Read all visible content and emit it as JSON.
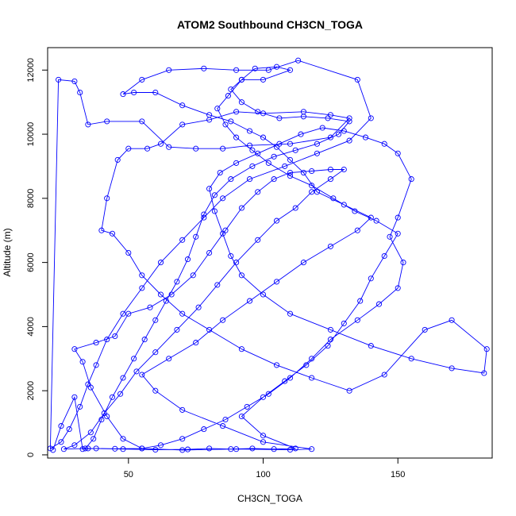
{
  "chart_data": {
    "type": "scatter",
    "title": "ATOM2 Southbound CH3CN_TOGA",
    "xlabel": "CH3CN_TOGA",
    "ylabel": "Altitude (m)",
    "xlim": [
      20,
      185
    ],
    "ylim": [
      -100,
      12700
    ],
    "xticks": [
      50,
      100,
      150
    ],
    "yticks": [
      0,
      2000,
      4000,
      6000,
      8000,
      10000,
      12000
    ],
    "grid": false,
    "legend": "none",
    "series": [
      {
        "color": "#0000ff",
        "marker": "open-circle",
        "line": true,
        "points": [
          [
            22,
            150
          ],
          [
            25,
            900
          ],
          [
            30,
            1800
          ],
          [
            33,
            180
          ],
          [
            38,
            200
          ],
          [
            45,
            190
          ],
          [
            55,
            200
          ],
          [
            70,
            150
          ],
          [
            90,
            180
          ],
          [
            110,
            160
          ],
          [
            118,
            180
          ],
          [
            100,
            400
          ],
          [
            85,
            900
          ],
          [
            70,
            1400
          ],
          [
            60,
            2000
          ],
          [
            55,
            2500
          ],
          [
            65,
            3000
          ],
          [
            75,
            3500
          ],
          [
            85,
            4200
          ],
          [
            95,
            4800
          ],
          [
            105,
            5400
          ],
          [
            115,
            6000
          ],
          [
            125,
            6500
          ],
          [
            135,
            7000
          ],
          [
            140,
            7400
          ],
          [
            130,
            7800
          ],
          [
            120,
            8200
          ],
          [
            115,
            8800
          ],
          [
            110,
            9200
          ],
          [
            105,
            9600
          ],
          [
            100,
            9900
          ],
          [
            95,
            10100
          ],
          [
            88,
            10400
          ],
          [
            80,
            10600
          ],
          [
            70,
            10900
          ],
          [
            60,
            11300
          ],
          [
            52,
            11300
          ],
          [
            48,
            11250
          ],
          [
            55,
            11700
          ],
          [
            65,
            12000
          ],
          [
            78,
            12050
          ],
          [
            90,
            12000
          ],
          [
            102,
            12000
          ],
          [
            113,
            12300
          ],
          [
            135,
            11700
          ],
          [
            140,
            10500
          ],
          [
            132,
            9800
          ],
          [
            120,
            9400
          ],
          [
            108,
            9000
          ],
          [
            95,
            8600
          ],
          [
            85,
            8000
          ],
          [
            78,
            7400
          ],
          [
            70,
            6700
          ],
          [
            62,
            6000
          ],
          [
            55,
            5200
          ],
          [
            48,
            4400
          ],
          [
            42,
            3600
          ],
          [
            38,
            2800
          ],
          [
            35,
            2200
          ],
          [
            32,
            1500
          ],
          [
            28,
            800
          ],
          [
            25,
            400
          ],
          [
            21,
            200
          ],
          [
            24,
            11700
          ],
          [
            30,
            11650
          ],
          [
            32,
            11300
          ],
          [
            35,
            10300
          ],
          [
            42,
            10400
          ],
          [
            55,
            10400
          ],
          [
            65,
            9600
          ],
          [
            75,
            9550
          ],
          [
            85,
            9550
          ],
          [
            95,
            9650
          ],
          [
            110,
            9700
          ],
          [
            125,
            9900
          ],
          [
            132,
            10500
          ],
          [
            125,
            10600
          ],
          [
            115,
            10700
          ],
          [
            100,
            10650
          ],
          [
            90,
            10700
          ],
          [
            80,
            10450
          ],
          [
            70,
            10300
          ],
          [
            62,
            9700
          ],
          [
            57,
            9550
          ],
          [
            50,
            9550
          ],
          [
            46,
            9200
          ],
          [
            42,
            8000
          ],
          [
            40,
            7000
          ],
          [
            44,
            6900
          ],
          [
            50,
            6300
          ],
          [
            55,
            5600
          ],
          [
            62,
            5000
          ],
          [
            70,
            4400
          ],
          [
            80,
            3900
          ],
          [
            92,
            3300
          ],
          [
            105,
            2800
          ],
          [
            118,
            2400
          ],
          [
            132,
            2000
          ],
          [
            145,
            2500
          ],
          [
            160,
            3900
          ],
          [
            170,
            4200
          ],
          [
            183,
            3300
          ],
          [
            182,
            2550
          ],
          [
            170,
            2700
          ],
          [
            155,
            3000
          ],
          [
            140,
            3400
          ],
          [
            125,
            3900
          ],
          [
            110,
            4400
          ],
          [
            100,
            5000
          ],
          [
            92,
            5600
          ],
          [
            88,
            6200
          ],
          [
            85,
            6900
          ],
          [
            82,
            7600
          ],
          [
            80,
            8300
          ],
          [
            84,
            8800
          ],
          [
            90,
            9100
          ],
          [
            98,
            9400
          ],
          [
            106,
            9700
          ],
          [
            114,
            10000
          ],
          [
            122,
            10200
          ],
          [
            130,
            10100
          ],
          [
            138,
            9900
          ],
          [
            145,
            9700
          ],
          [
            150,
            9400
          ],
          [
            155,
            8600
          ],
          [
            150,
            7400
          ],
          [
            147,
            6800
          ],
          [
            152,
            6000
          ],
          [
            150,
            5200
          ],
          [
            143,
            4700
          ],
          [
            135,
            4200
          ],
          [
            125,
            3600
          ],
          [
            118,
            3000
          ],
          [
            110,
            2400
          ],
          [
            102,
            1900
          ],
          [
            94,
            1500
          ],
          [
            86,
            1100
          ],
          [
            78,
            800
          ],
          [
            70,
            500
          ],
          [
            62,
            300
          ],
          [
            55,
            200
          ],
          [
            48,
            500
          ],
          [
            42,
            1200
          ],
          [
            36,
            2100
          ],
          [
            33,
            2900
          ],
          [
            30,
            3300
          ],
          [
            38,
            3500
          ],
          [
            45,
            3700
          ],
          [
            50,
            4400
          ],
          [
            58,
            4600
          ],
          [
            66,
            5000
          ],
          [
            74,
            5600
          ],
          [
            80,
            6300
          ],
          [
            86,
            7000
          ],
          [
            92,
            7700
          ],
          [
            98,
            8200
          ],
          [
            104,
            8600
          ],
          [
            110,
            8800
          ],
          [
            118,
            8850
          ],
          [
            125,
            8900
          ],
          [
            130,
            8900
          ],
          [
            125,
            8600
          ],
          [
            118,
            8200
          ],
          [
            112,
            7700
          ],
          [
            105,
            7300
          ],
          [
            98,
            6700
          ],
          [
            90,
            6000
          ],
          [
            83,
            5300
          ],
          [
            76,
            4600
          ],
          [
            68,
            3900
          ],
          [
            60,
            3200
          ],
          [
            53,
            2600
          ],
          [
            47,
            1900
          ],
          [
            41,
            1300
          ],
          [
            36,
            700
          ],
          [
            30,
            300
          ],
          [
            26,
            180
          ],
          [
            35,
            200
          ],
          [
            48,
            180
          ],
          [
            60,
            160
          ],
          [
            72,
            170
          ],
          [
            80,
            200
          ],
          [
            88,
            180
          ],
          [
            96,
            200
          ],
          [
            104,
            180
          ],
          [
            112,
            200
          ],
          [
            100,
            600
          ],
          [
            92,
            1200
          ],
          [
            100,
            1800
          ],
          [
            108,
            2300
          ],
          [
            116,
            2800
          ],
          [
            124,
            3400
          ],
          [
            130,
            4100
          ],
          [
            136,
            4800
          ],
          [
            140,
            5500
          ],
          [
            145,
            6200
          ],
          [
            150,
            6900
          ],
          [
            142,
            7300
          ],
          [
            134,
            7600
          ],
          [
            126,
            8000
          ],
          [
            118,
            8400
          ],
          [
            110,
            8700
          ],
          [
            102,
            9100
          ],
          [
            96,
            9500
          ],
          [
            90,
            9900
          ],
          [
            86,
            10300
          ],
          [
            83,
            10800
          ],
          [
            87,
            11200
          ],
          [
            92,
            11700
          ],
          [
            97,
            12050
          ],
          [
            105,
            12100
          ],
          [
            110,
            12000
          ],
          [
            100,
            11700
          ],
          [
            92,
            11700
          ],
          [
            88,
            11400
          ],
          [
            92,
            11000
          ],
          [
            98,
            10700
          ],
          [
            106,
            10500
          ],
          [
            115,
            10550
          ],
          [
            124,
            10500
          ],
          [
            132,
            10400
          ],
          [
            128,
            10000
          ],
          [
            120,
            9700
          ],
          [
            112,
            9500
          ],
          [
            104,
            9300
          ],
          [
            96,
            9000
          ],
          [
            88,
            8600
          ],
          [
            82,
            8100
          ],
          [
            78,
            7500
          ],
          [
            75,
            6800
          ],
          [
            72,
            6100
          ],
          [
            68,
            5400
          ],
          [
            64,
            4800
          ],
          [
            60,
            4200
          ],
          [
            56,
            3600
          ],
          [
            52,
            3000
          ],
          [
            48,
            2400
          ],
          [
            44,
            1800
          ],
          [
            40,
            1100
          ],
          [
            37,
            500
          ],
          [
            34,
            200
          ]
        ]
      }
    ]
  }
}
